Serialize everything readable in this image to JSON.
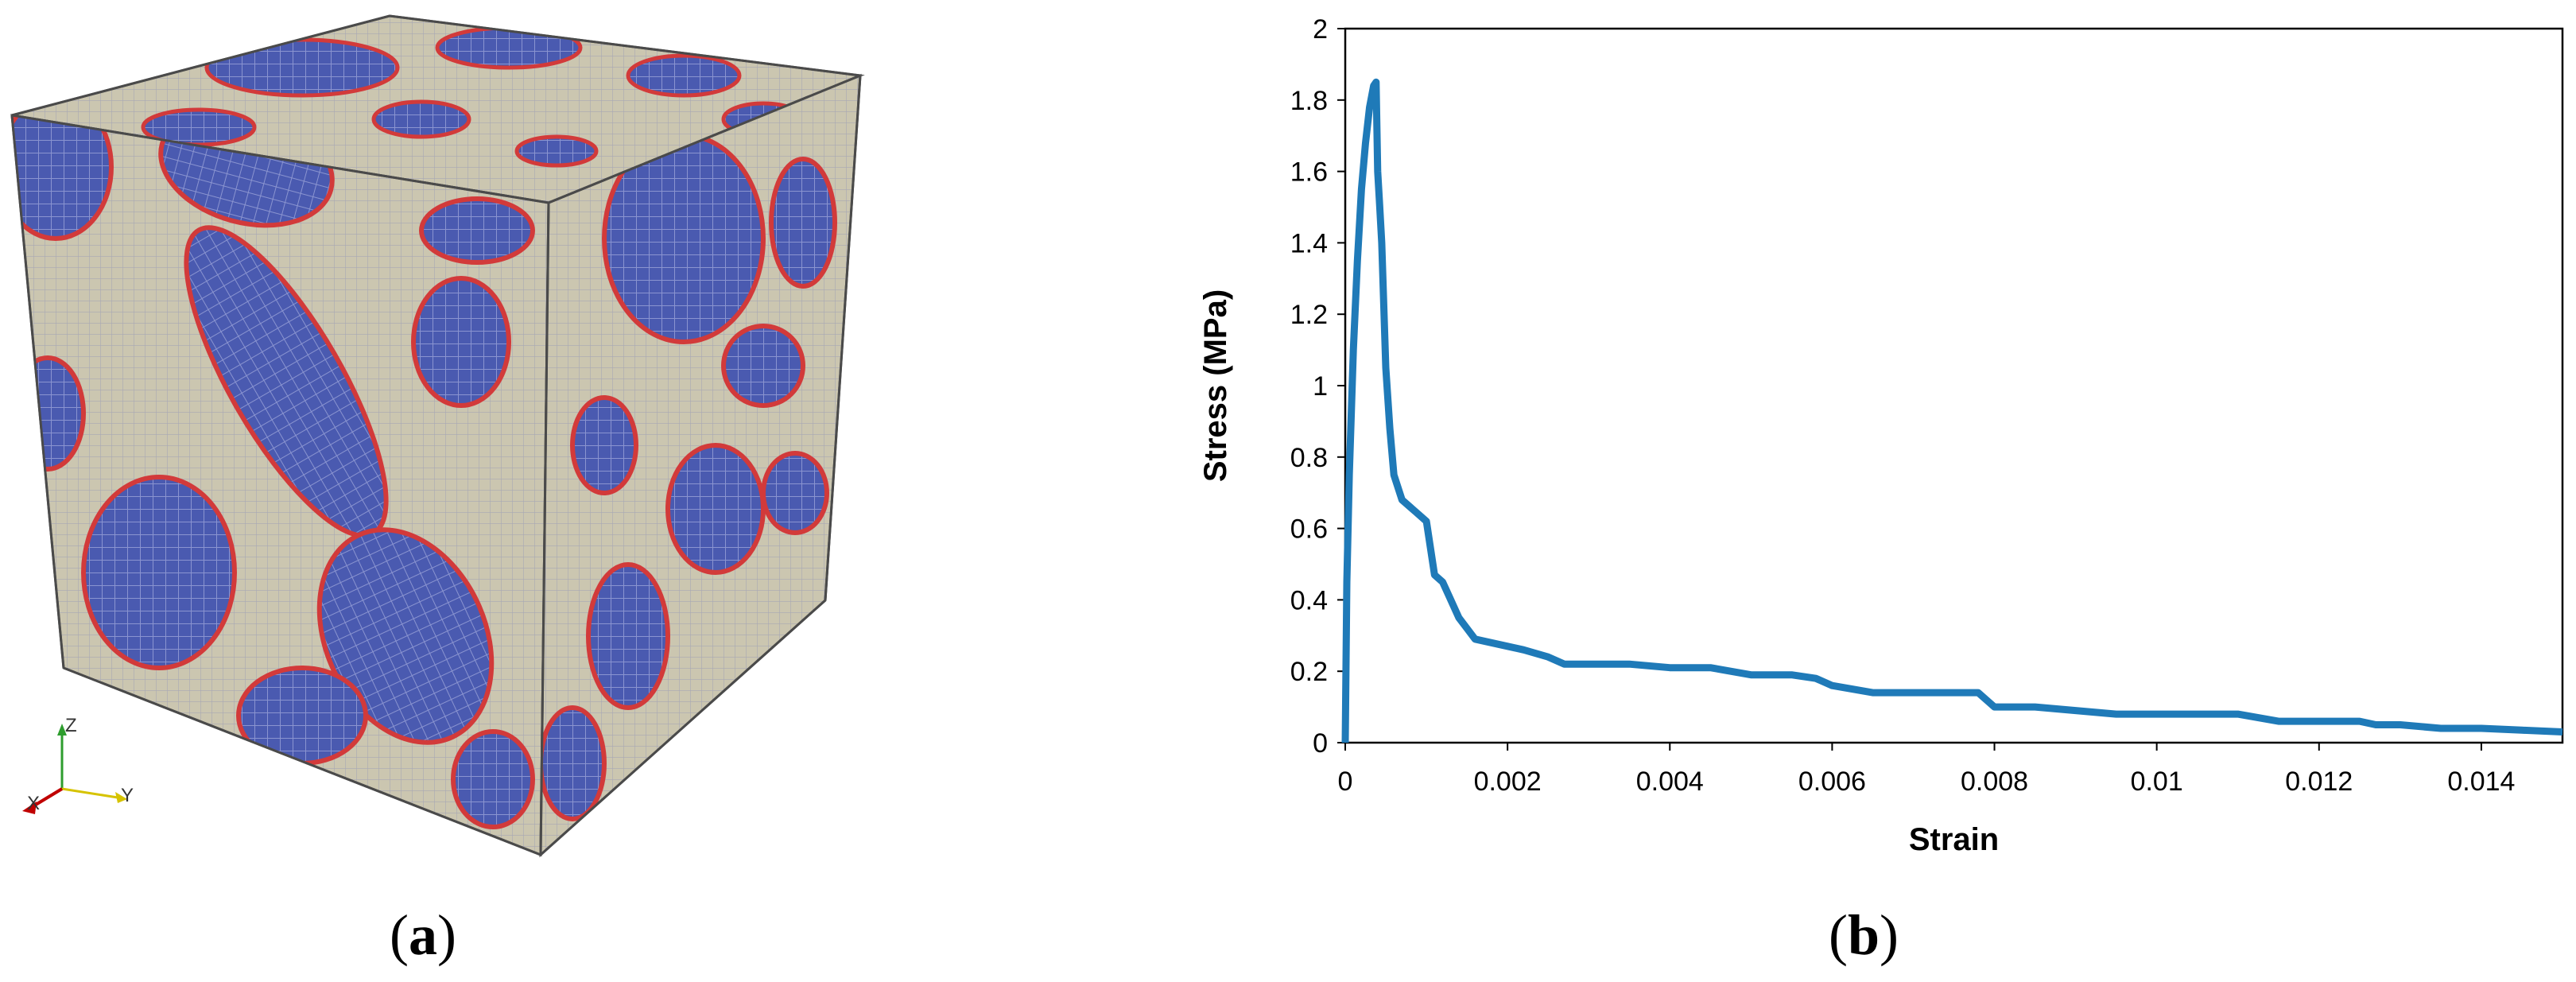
{
  "panel_a": {
    "label_open": "(",
    "label_letter": "a",
    "label_close": ")",
    "axis_labels": {
      "z": "Z",
      "x": "X",
      "y": "Y"
    },
    "colors": {
      "cube_face": "#cbc6b0",
      "mesh_blue": "#4a5ab0",
      "mesh_red": "#d23a3a",
      "edge": "#5a5a5a"
    }
  },
  "panel_b": {
    "label_open": "(",
    "label_letter": "b",
    "label_close": ")"
  },
  "chart_data": {
    "type": "line",
    "title": "",
    "xlabel": "Strain",
    "ylabel": "Stress (MPa)",
    "xlim": [
      0,
      0.015
    ],
    "ylim": [
      0,
      2
    ],
    "xticks": [
      0,
      0.002,
      0.004,
      0.006,
      0.008,
      0.01,
      0.012,
      0.014
    ],
    "xtick_labels": [
      "0",
      "0.002",
      "0.004",
      "0.006",
      "0.008",
      "0.01",
      "0.012",
      "0.014"
    ],
    "yticks": [
      0,
      0.2,
      0.4,
      0.6,
      0.8,
      1,
      1.2,
      1.4,
      1.6,
      1.8,
      2
    ],
    "ytick_labels": [
      "0",
      "0.2",
      "0.4",
      "0.6",
      "0.8",
      "1",
      "1.2",
      "1.4",
      "1.6",
      "1.8",
      "2"
    ],
    "grid": false,
    "color": "#1f7ab8",
    "series": [
      {
        "x": [
          0,
          2e-05,
          5e-05,
          0.0001,
          0.00015,
          0.0002,
          0.00025,
          0.0003,
          0.00035,
          0.00038,
          0.0004,
          0.00042,
          0.00045,
          0.0005,
          0.00055,
          0.0006,
          0.0007,
          0.0008,
          0.0009,
          0.001,
          0.0011,
          0.0012,
          0.0013,
          0.0014,
          0.0015,
          0.0016,
          0.0018,
          0.002,
          0.0022,
          0.0025,
          0.0027,
          0.003,
          0.0035,
          0.004,
          0.0045,
          0.005,
          0.0055,
          0.0058,
          0.006,
          0.0065,
          0.007,
          0.0075,
          0.0078,
          0.008,
          0.0085,
          0.009,
          0.0095,
          0.01,
          0.0105,
          0.011,
          0.0115,
          0.012,
          0.0125,
          0.0127,
          0.013,
          0.0135,
          0.014,
          0.0145,
          0.015
        ],
        "y": [
          0,
          0.45,
          0.75,
          1.1,
          1.35,
          1.55,
          1.68,
          1.78,
          1.84,
          1.85,
          1.6,
          1.52,
          1.4,
          1.05,
          0.88,
          0.75,
          0.68,
          0.66,
          0.64,
          0.62,
          0.47,
          0.45,
          0.4,
          0.35,
          0.32,
          0.29,
          0.28,
          0.27,
          0.26,
          0.24,
          0.22,
          0.22,
          0.22,
          0.21,
          0.21,
          0.19,
          0.19,
          0.18,
          0.16,
          0.14,
          0.14,
          0.14,
          0.14,
          0.1,
          0.1,
          0.09,
          0.08,
          0.08,
          0.08,
          0.08,
          0.06,
          0.06,
          0.06,
          0.05,
          0.05,
          0.04,
          0.04,
          0.035,
          0.03
        ]
      }
    ]
  }
}
